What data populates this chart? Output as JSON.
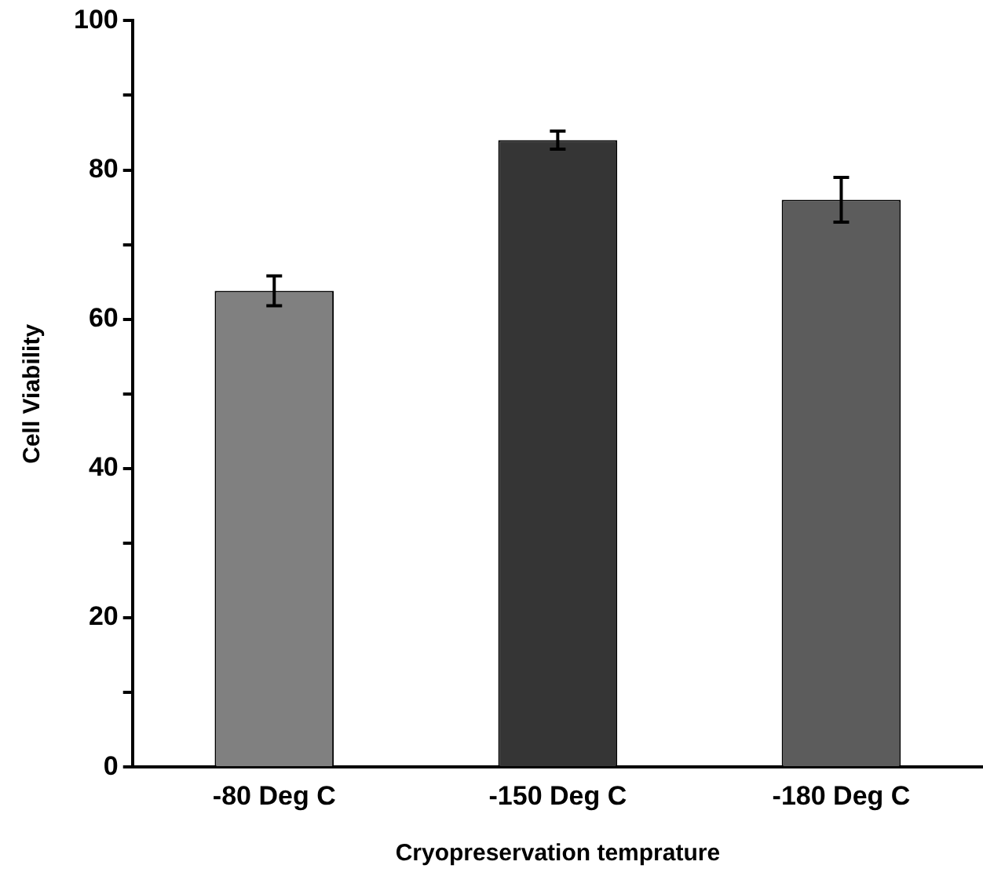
{
  "chart_data": {
    "type": "bar",
    "xlabel": "Cryopreservation temprature",
    "ylabel": "Cell Viability",
    "categories": [
      "-80 Deg C",
      "-150 Deg C",
      "-180 Deg C"
    ],
    "values": [
      63.8,
      84,
      76
    ],
    "errors": [
      2,
      1.2,
      3
    ],
    "colors": [
      "#808080",
      "#353535",
      "#5c5c5c"
    ],
    "ylim": [
      0,
      100
    ],
    "yticks": [
      0,
      20,
      40,
      60,
      80,
      100
    ],
    "grid": false,
    "legend": false
  }
}
